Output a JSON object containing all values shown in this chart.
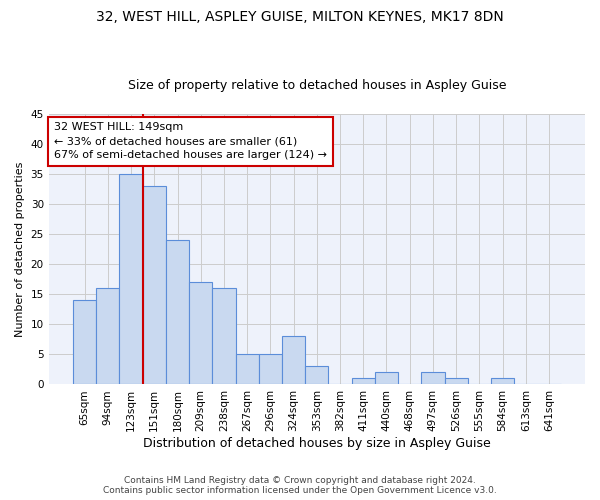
{
  "title": "32, WEST HILL, ASPLEY GUISE, MILTON KEYNES, MK17 8DN",
  "subtitle": "Size of property relative to detached houses in Aspley Guise",
  "xlabel": "Distribution of detached houses by size in Aspley Guise",
  "ylabel": "Number of detached properties",
  "bar_labels": [
    "65sqm",
    "94sqm",
    "123sqm",
    "151sqm",
    "180sqm",
    "209sqm",
    "238sqm",
    "267sqm",
    "296sqm",
    "324sqm",
    "353sqm",
    "382sqm",
    "411sqm",
    "440sqm",
    "468sqm",
    "497sqm",
    "526sqm",
    "555sqm",
    "584sqm",
    "613sqm",
    "641sqm"
  ],
  "bar_values": [
    14,
    16,
    35,
    33,
    24,
    17,
    16,
    5,
    5,
    8,
    3,
    0,
    1,
    2,
    0,
    2,
    1,
    0,
    1,
    0,
    0
  ],
  "bar_color": "#c9d9f0",
  "bar_edge_color": "#5b8dd9",
  "vline_color": "#cc0000",
  "annotation_text": "32 WEST HILL: 149sqm\n← 33% of detached houses are smaller (61)\n67% of semi-detached houses are larger (124) →",
  "annotation_box_color": "#ffffff",
  "annotation_box_edge": "#cc0000",
  "ylim": [
    0,
    45
  ],
  "yticks": [
    0,
    5,
    10,
    15,
    20,
    25,
    30,
    35,
    40,
    45
  ],
  "grid_color": "#cccccc",
  "bg_color": "#eef2fb",
  "footer": "Contains HM Land Registry data © Crown copyright and database right 2024.\nContains public sector information licensed under the Open Government Licence v3.0.",
  "title_fontsize": 10,
  "subtitle_fontsize": 9,
  "xlabel_fontsize": 9,
  "ylabel_fontsize": 8,
  "tick_fontsize": 7.5,
  "annotation_fontsize": 8,
  "footer_fontsize": 6.5
}
